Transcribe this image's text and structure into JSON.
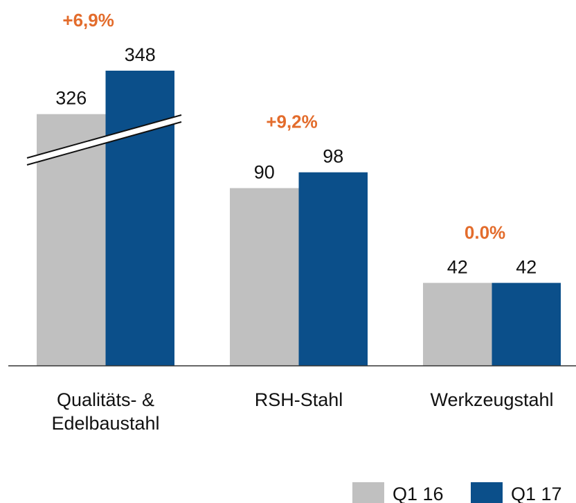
{
  "chart_data": {
    "type": "bar",
    "categories": [
      "Qualitäts- & Edelbaustahl",
      "RSH-Stahl",
      "Werkzeugstahl"
    ],
    "series": [
      {
        "name": "Q1 16",
        "color": "#c0c0c0",
        "values": [
          326,
          90,
          42
        ]
      },
      {
        "name": "Q1 17",
        "color": "#0b4f8a",
        "values": [
          348,
          98,
          42
        ]
      }
    ],
    "annotations": [
      "+6,9%",
      "+9,2%",
      "0.0%"
    ],
    "annotation_color": "#e36c2c",
    "axis_break": true,
    "legend": "bottom-right"
  }
}
